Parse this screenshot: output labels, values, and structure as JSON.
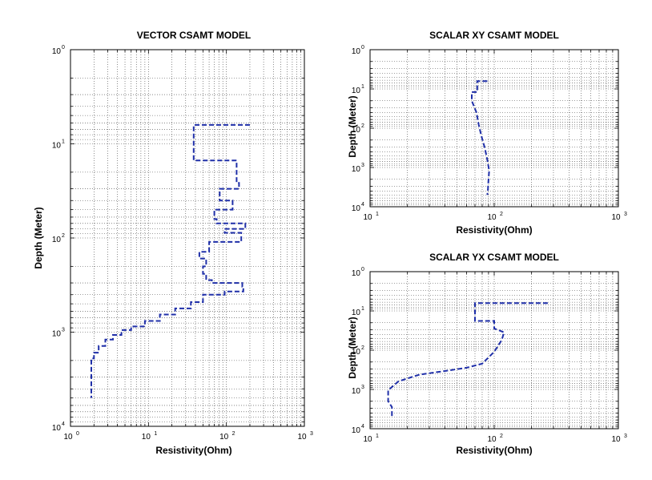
{
  "chart_data": [
    {
      "type": "line",
      "title": "VECTOR CSAMT MODEL",
      "xlabel": "Resistivity(Ohm)",
      "ylabel": "Depth (Meter)",
      "xscale": "log",
      "yscale": "log",
      "yaxis_inverted": true,
      "grid": true,
      "xlim": [
        1,
        1000
      ],
      "ylim": [
        1,
        10000
      ],
      "xticks": [
        {
          "base": "10",
          "exp": "0"
        },
        {
          "base": "10",
          "exp": "1"
        },
        {
          "base": "10",
          "exp": "2"
        },
        {
          "base": "10",
          "exp": "3"
        }
      ],
      "yticks": [
        {
          "base": "10",
          "exp": "0"
        },
        {
          "base": "10",
          "exp": "1"
        },
        {
          "base": "10",
          "exp": "2"
        },
        {
          "base": "10",
          "exp": "3"
        },
        {
          "base": "10",
          "exp": "4"
        }
      ],
      "series": [
        {
          "line_style": "dashed",
          "color": "#1f2fa8",
          "x": [
            200,
            38,
            38,
            135,
            135,
            145,
            145,
            82,
            82,
            120,
            120,
            70,
            70,
            75,
            75,
            175,
            175,
            95,
            95,
            155,
            155,
            60,
            60,
            45,
            45,
            55,
            55,
            50,
            50,
            55,
            55,
            65,
            65,
            160,
            160,
            165,
            165,
            95,
            95,
            50,
            50,
            35,
            35,
            22,
            22,
            14,
            14,
            9,
            9,
            6,
            6,
            4.5,
            4.5,
            3.5,
            3.5,
            2.8,
            2.8,
            2.3,
            2.3,
            2.0,
            2.0,
            1.85,
            1.85
          ],
          "y": [
            6.3,
            6.3,
            15,
            15,
            26,
            26,
            30,
            30,
            40,
            40,
            50,
            50,
            63,
            63,
            70,
            70,
            80,
            80,
            88,
            88,
            110,
            110,
            140,
            140,
            165,
            165,
            200,
            200,
            240,
            240,
            280,
            280,
            300,
            300,
            330,
            330,
            370,
            370,
            400,
            400,
            480,
            480,
            560,
            560,
            650,
            650,
            760,
            760,
            870,
            870,
            950,
            950,
            1070,
            1070,
            1200,
            1200,
            1400,
            1400,
            1650,
            1650,
            1900,
            1900,
            5000
          ]
        }
      ]
    },
    {
      "type": "line",
      "title": "SCALAR XY CSAMT  MODEL",
      "xlabel": "Resistivity(Ohm)",
      "ylabel": "Depth (Meter)",
      "xscale": "log",
      "yscale": "log",
      "yaxis_inverted": true,
      "grid": true,
      "xlim": [
        10,
        1000
      ],
      "ylim": [
        1,
        10000
      ],
      "xticks": [
        {
          "base": "10",
          "exp": "1"
        },
        {
          "base": "10",
          "exp": "2"
        },
        {
          "base": "10",
          "exp": "3"
        }
      ],
      "yticks": [
        {
          "base": "10",
          "exp": "0"
        },
        {
          "base": "10",
          "exp": "1"
        },
        {
          "base": "10",
          "exp": "2"
        },
        {
          "base": "10",
          "exp": "3"
        },
        {
          "base": "10",
          "exp": "4"
        }
      ],
      "series": [
        {
          "line_style": "dashed",
          "color": "#1f2fa8",
          "x": [
            88,
            73,
            73,
            66,
            66,
            72,
            75,
            79,
            84,
            88,
            91,
            90,
            89,
            88
          ],
          "y": [
            6.3,
            6.3,
            12,
            12,
            20,
            40,
            80,
            160,
            320,
            640,
            1200,
            2000,
            3500,
            5000
          ]
        }
      ]
    },
    {
      "type": "line",
      "title": "SCALAR YX CSAMT  MODEL",
      "xlabel": "Resistivity(Ohm)",
      "ylabel": "Depth (Meter)",
      "xscale": "log",
      "yscale": "log",
      "yaxis_inverted": true,
      "grid": true,
      "xlim": [
        10,
        1000
      ],
      "ylim": [
        1,
        10000
      ],
      "xticks": [
        {
          "base": "10",
          "exp": "1"
        },
        {
          "base": "10",
          "exp": "2"
        },
        {
          "base": "10",
          "exp": "3"
        }
      ],
      "yticks": [
        {
          "base": "10",
          "exp": "0"
        },
        {
          "base": "10",
          "exp": "1"
        },
        {
          "base": "10",
          "exp": "2"
        },
        {
          "base": "10",
          "exp": "3"
        },
        {
          "base": "10",
          "exp": "4"
        }
      ],
      "series": [
        {
          "line_style": "dashed",
          "color": "#1f2fa8",
          "x": [
            270,
            70,
            70,
            100,
            100,
            120,
            115,
            100,
            80,
            60,
            40,
            25,
            17,
            14,
            14,
            15,
            15
          ],
          "y": [
            6.3,
            6.3,
            18,
            18,
            28,
            35,
            55,
            110,
            220,
            280,
            340,
            420,
            620,
            1050,
            2000,
            2800,
            5000
          ]
        }
      ]
    }
  ]
}
